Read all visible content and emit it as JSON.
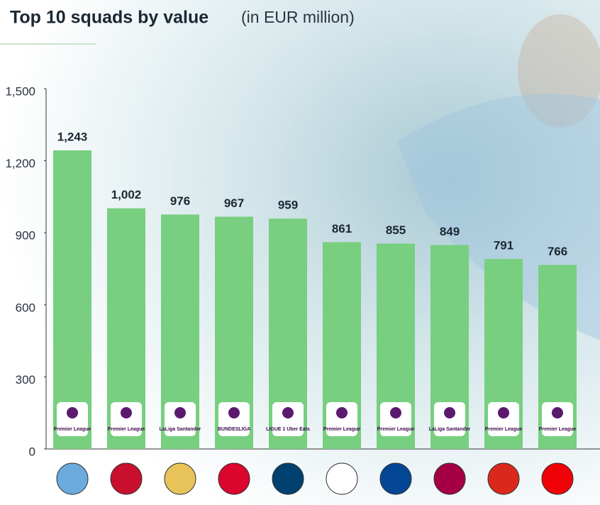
{
  "chart_data": {
    "type": "bar",
    "title": "Top 10 squads by value",
    "subtitle": "(in EUR million)",
    "categories": [
      null,
      null,
      null,
      null,
      null,
      null,
      null,
      null,
      null,
      null
    ],
    "leagues": [
      "Premier League",
      "Premier League",
      "LaLiga Santander",
      "BUNDESLIGA",
      "LIGUE 1 Uber Eats",
      "Premier League",
      "Premier League",
      "LaLiga Santander",
      "Premier League",
      "Premier League"
    ],
    "values": [
      1243,
      1002,
      976,
      967,
      959,
      861,
      855,
      849,
      791,
      766
    ],
    "value_labels": [
      "1,243",
      "1,002",
      "976",
      "967",
      "959",
      "861",
      "855",
      "849",
      "791",
      "766"
    ],
    "color": "#77cf7f",
    "ylim": [
      0,
      1500
    ],
    "yticks": [
      0,
      300,
      600,
      900,
      {
        "value": 1200,
        "label": "1,200"
      },
      {
        "value": 1500,
        "label": "1,500"
      }
    ],
    "grid": false
  }
}
